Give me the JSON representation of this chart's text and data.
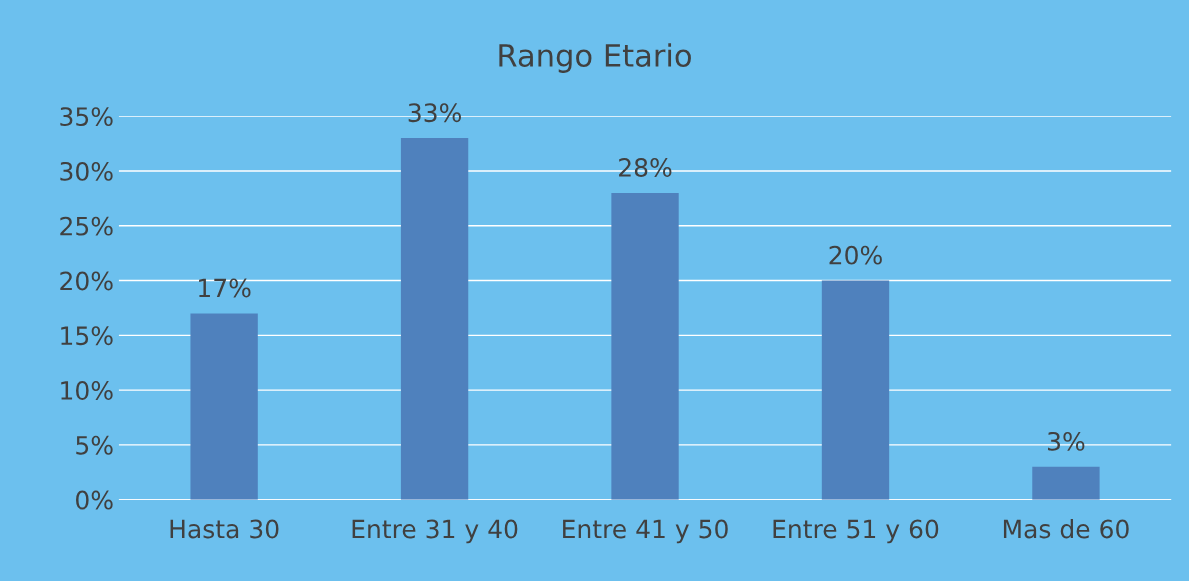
{
  "chart_data": {
    "type": "bar",
    "title": "Rango Etario",
    "categories": [
      "Hasta 30",
      "Entre 31 y 40",
      "Entre 41 y 50",
      "Entre 51 y 60",
      "Mas de 60"
    ],
    "values": [
      17,
      33,
      28,
      20,
      3
    ],
    "color": "#4f81bd",
    "ylim": [
      0,
      35
    ],
    "yticks": [
      {
        "value": 0,
        "label": "0%"
      },
      {
        "value": 5,
        "label": "5%"
      },
      {
        "value": 10,
        "label": "10%"
      },
      {
        "value": 15,
        "label": "15%"
      },
      {
        "value": 20,
        "label": "20%"
      },
      {
        "value": 25,
        "label": "25%"
      },
      {
        "value": 30,
        "label": "30%"
      },
      {
        "value": 35,
        "label": "35%"
      }
    ],
    "value_labels": [
      "17%",
      "33%",
      "28%",
      "20%",
      "3%"
    ],
    "grid": "y",
    "legend": false
  }
}
